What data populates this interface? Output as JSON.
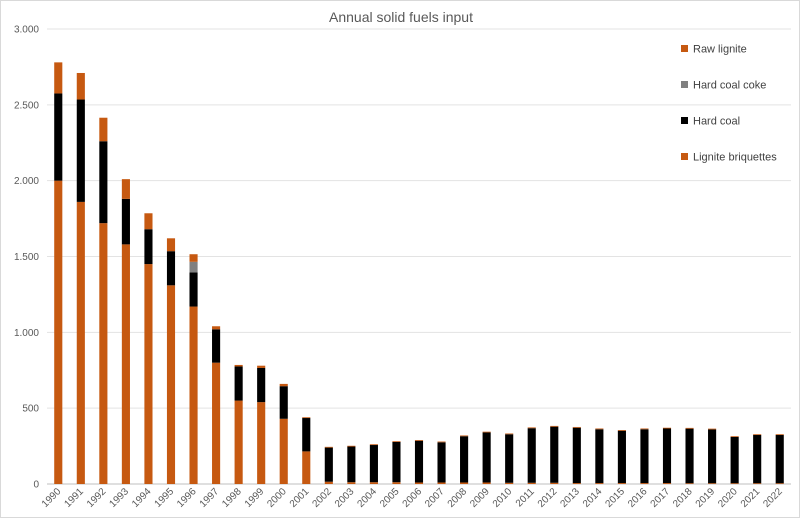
{
  "chart_data": {
    "type": "bar",
    "stacked": true,
    "title": "Annual solid fuels input",
    "xlabel": "",
    "ylabel": "",
    "ylim": [
      0,
      3000
    ],
    "yticks": [
      0,
      500,
      1000,
      1500,
      2000,
      2500,
      3000
    ],
    "ytick_labels": [
      "0",
      "500",
      "1.000",
      "1.500",
      "2.000",
      "2.500",
      "3.000"
    ],
    "grid": true,
    "legend_position": "right",
    "categories": [
      "1990",
      "1991",
      "1992",
      "1993",
      "1994",
      "1995",
      "1996",
      "1997",
      "1998",
      "1999",
      "2000",
      "2001",
      "2002",
      "2003",
      "2004",
      "2005",
      "2006",
      "2007",
      "2008",
      "2009",
      "2010",
      "2011",
      "2012",
      "2013",
      "2014",
      "2015",
      "2016",
      "2017",
      "2018",
      "2019",
      "2020",
      "2021",
      "2022"
    ],
    "series": [
      {
        "name": "Lignite briquettes",
        "color": "#c65911",
        "values": [
          2000,
          1860,
          1720,
          1580,
          1450,
          1310,
          1170,
          800,
          550,
          540,
          430,
          215,
          15,
          12,
          12,
          12,
          10,
          10,
          10,
          10,
          8,
          8,
          8,
          6,
          6,
          6,
          6,
          6,
          5,
          5,
          5,
          5,
          5
        ]
      },
      {
        "name": "Hard coal",
        "color": "#000000",
        "values": [
          575,
          675,
          540,
          300,
          230,
          225,
          225,
          220,
          225,
          225,
          215,
          220,
          225,
          235,
          245,
          265,
          275,
          265,
          305,
          330,
          320,
          360,
          370,
          365,
          355,
          345,
          355,
          360,
          360,
          355,
          305,
          318,
          318
        ]
      },
      {
        "name": "Hard coal coke",
        "color": "#808080",
        "values": [
          0,
          0,
          0,
          0,
          0,
          0,
          70,
          0,
          0,
          0,
          0,
          0,
          0,
          0,
          0,
          0,
          0,
          0,
          0,
          0,
          0,
          0,
          0,
          0,
          0,
          0,
          0,
          0,
          0,
          0,
          0,
          0,
          0
        ]
      },
      {
        "name": "Raw lignite",
        "color": "#c65911",
        "values": [
          205,
          175,
          155,
          130,
          105,
          85,
          50,
          20,
          10,
          15,
          15,
          5,
          5,
          5,
          5,
          5,
          5,
          5,
          5,
          5,
          5,
          5,
          5,
          5,
          5,
          5,
          5,
          5,
          5,
          5,
          5,
          5,
          5
        ]
      }
    ],
    "legend_order": [
      "Raw lignite",
      "Hard coal coke",
      "Hard coal",
      "Lignite briquettes"
    ]
  }
}
